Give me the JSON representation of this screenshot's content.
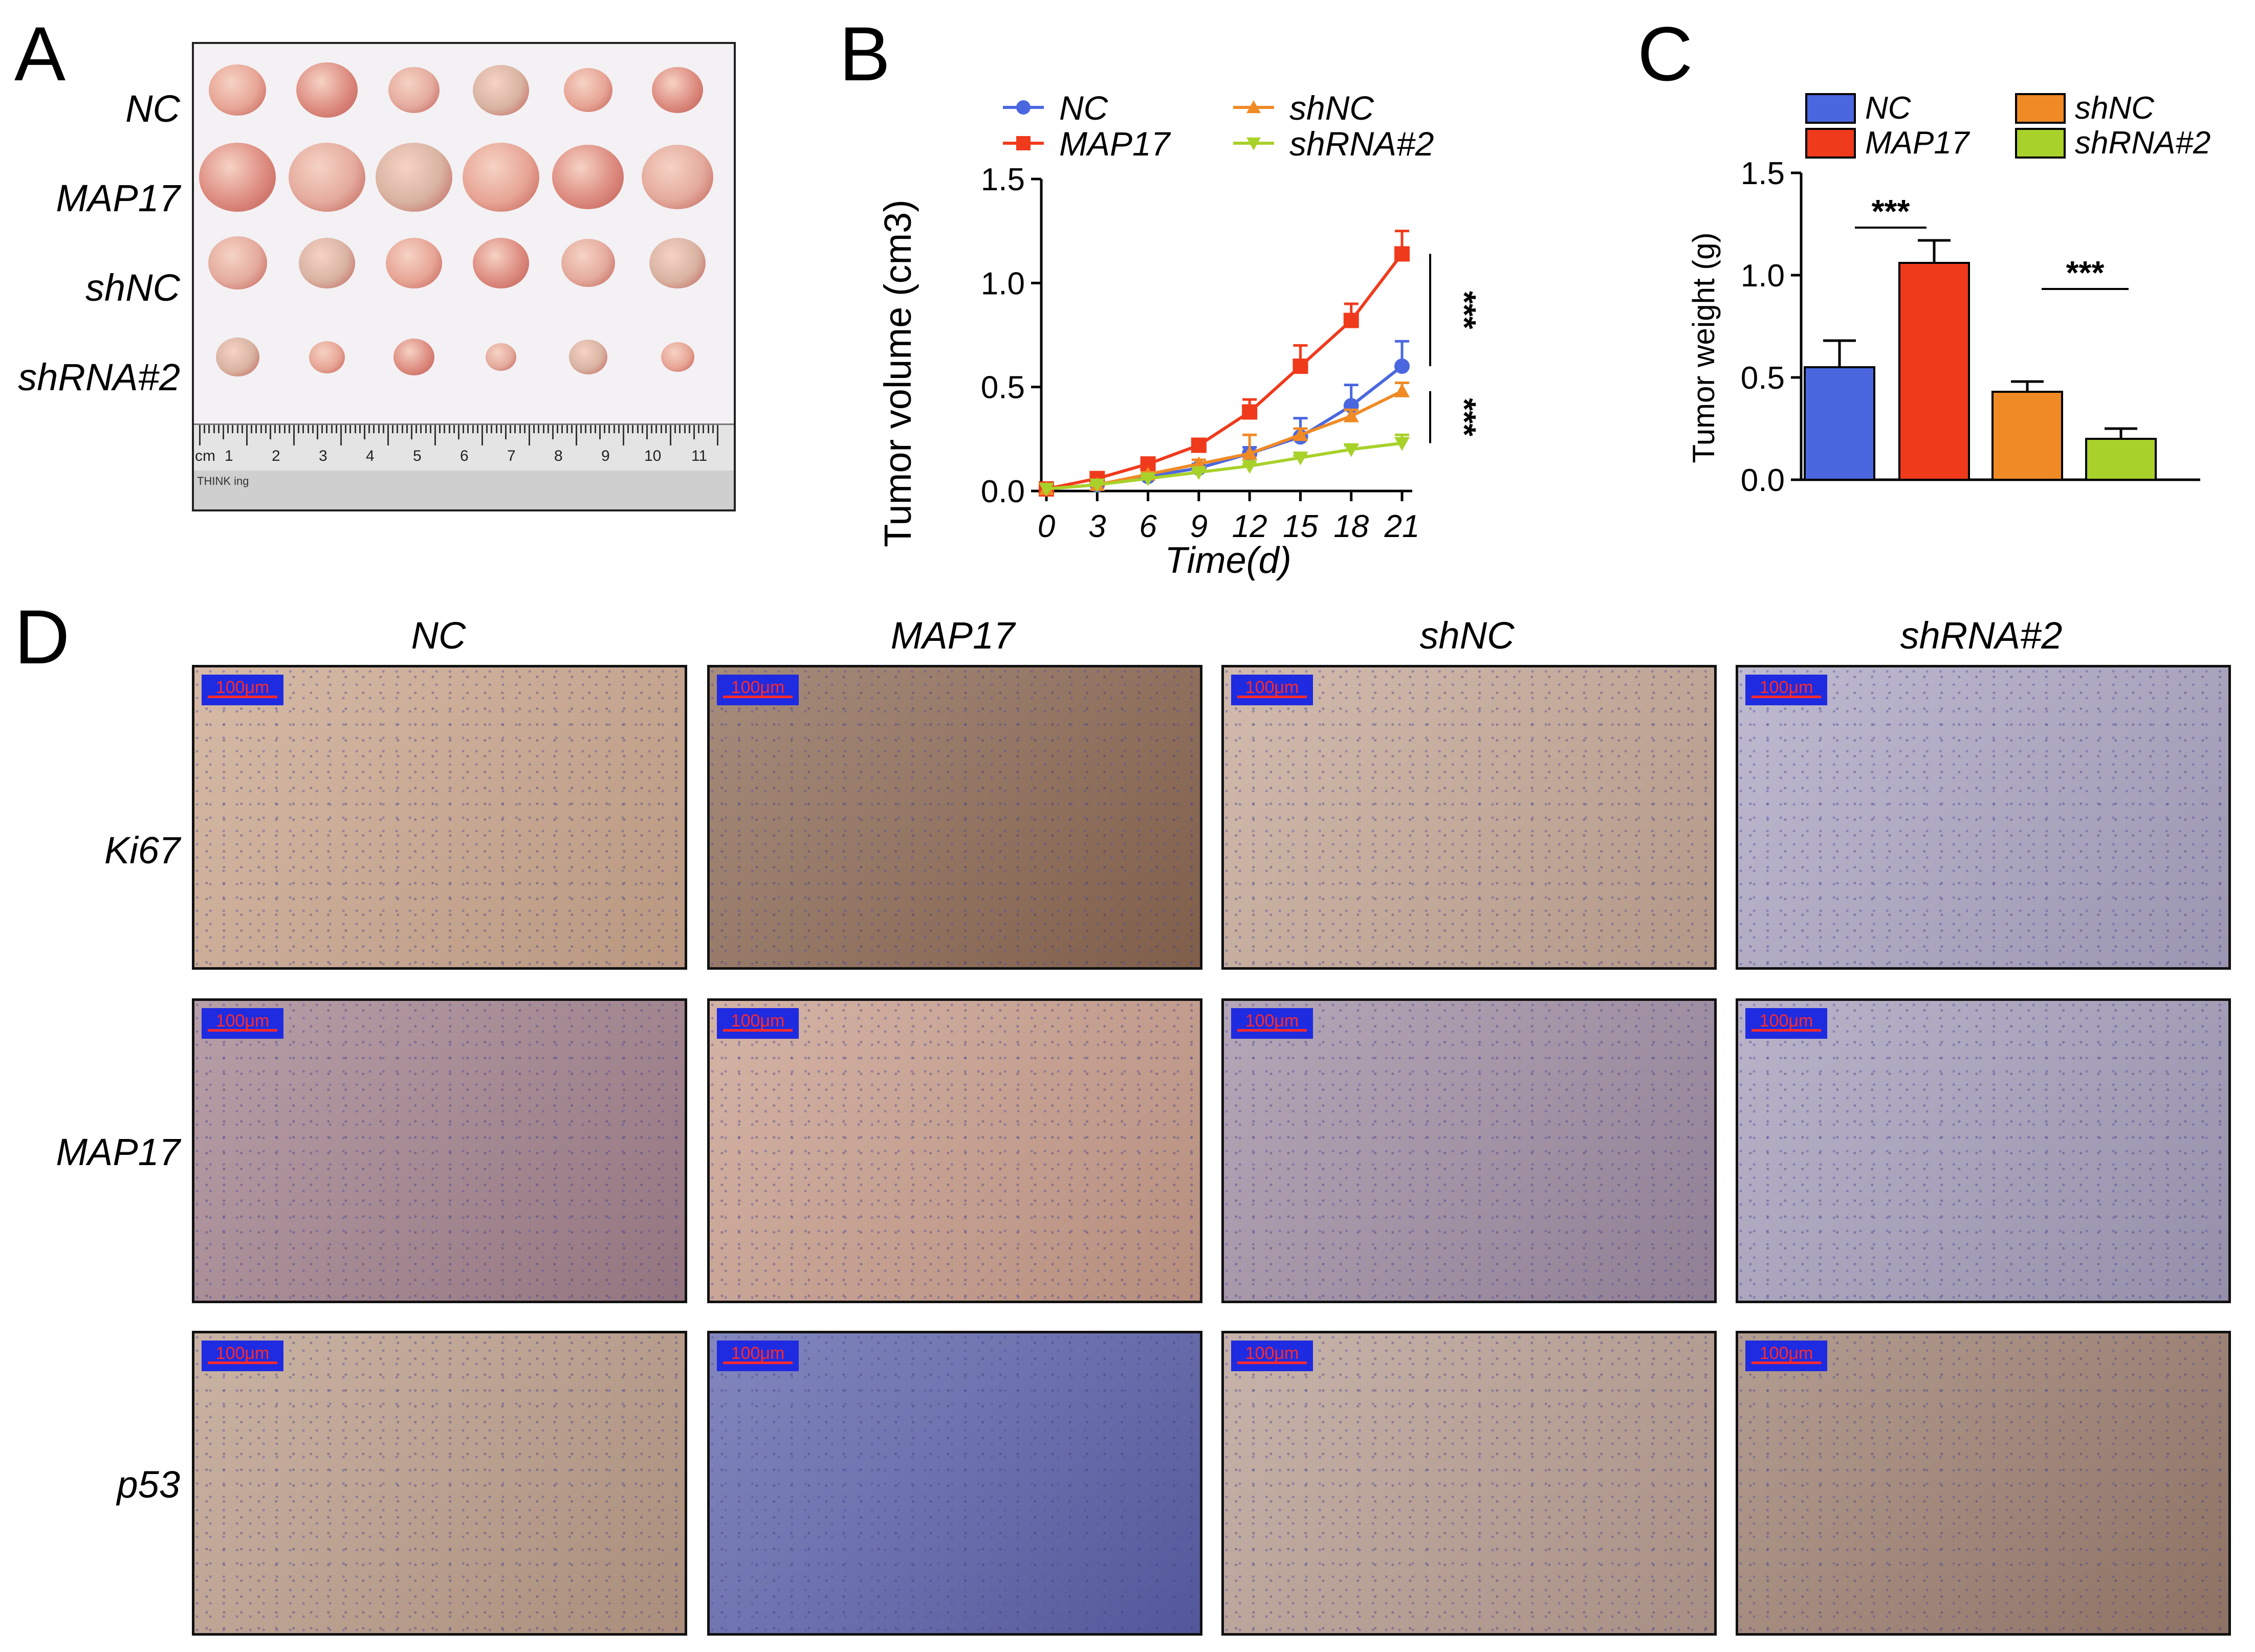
{
  "panels": {
    "A": "A",
    "B": "B",
    "C": "C",
    "D": "D"
  },
  "panel_a": {
    "groups": [
      "NC",
      "MAP17",
      "shNC",
      "shRNA#2"
    ],
    "ruler_numbers": [
      "cm",
      "1",
      "2",
      "3",
      "4",
      "5",
      "6",
      "7",
      "8",
      "9",
      "10",
      "11"
    ],
    "ruler_brand": "THINK ing"
  },
  "panel_d": {
    "columns": [
      "NC",
      "MAP17",
      "shNC",
      "shRNA#2"
    ],
    "rows": [
      "Ki67",
      "MAP17",
      "p53"
    ],
    "scale_bar": "100μm",
    "tissue_tones": [
      [
        "#c9a48a",
        "#8a6650",
        "#c3a593",
        "#a9a3c0"
      ],
      [
        "#a07f8a",
        "#c69a88",
        "#9d8aa0",
        "#a29bb8"
      ],
      [
        "#b99a86",
        "#5a5fa8",
        "#b69b8f",
        "#9a7c6c"
      ]
    ]
  },
  "colors": {
    "NC": "#4a67e0",
    "MAP17": "#f03a1c",
    "shNC": "#f08a25",
    "shRNA#2": "#a8d12a"
  },
  "chart_data": [
    {
      "type": "line",
      "ylabel": "Tumor volume (cm3)",
      "xlabel": "Time(d)",
      "x": [
        0,
        3,
        6,
        9,
        12,
        15,
        18,
        21
      ],
      "ylim": [
        0,
        1.5
      ],
      "yticks": [
        "0.0",
        "0.5",
        "1.0",
        "1.5"
      ],
      "legend_position": "top",
      "series": [
        {
          "name": "NC",
          "marker": "circle",
          "values": [
            0.01,
            0.03,
            0.07,
            0.11,
            0.18,
            0.26,
            0.41,
            0.6
          ],
          "errors": [
            0,
            0.01,
            0.01,
            0.02,
            0.03,
            0.09,
            0.1,
            0.12
          ]
        },
        {
          "name": "MAP17",
          "marker": "square",
          "values": [
            0.01,
            0.06,
            0.13,
            0.22,
            0.38,
            0.6,
            0.82,
            1.14
          ],
          "errors": [
            0,
            0.01,
            0.02,
            0.03,
            0.06,
            0.1,
            0.08,
            0.11
          ]
        },
        {
          "name": "shNC",
          "marker": "triangle-up",
          "values": [
            0.01,
            0.03,
            0.08,
            0.13,
            0.18,
            0.27,
            0.36,
            0.48
          ],
          "errors": [
            0,
            0.01,
            0.01,
            0.02,
            0.09,
            0.03,
            0.03,
            0.04
          ]
        },
        {
          "name": "shRNA#2",
          "marker": "triangle-down",
          "values": [
            0.01,
            0.03,
            0.06,
            0.09,
            0.12,
            0.16,
            0.2,
            0.23
          ],
          "errors": [
            0,
            0.01,
            0.01,
            0.01,
            0.01,
            0.01,
            0.02,
            0.04
          ]
        }
      ],
      "annotations": [
        "***",
        "***"
      ]
    },
    {
      "type": "bar",
      "ylabel": "Tumor weight (g)",
      "categories": [
        "NC",
        "MAP17",
        "shNC",
        "shRNA#2"
      ],
      "values": [
        0.55,
        1.06,
        0.43,
        0.2
      ],
      "errors": [
        0.13,
        0.11,
        0.05,
        0.05
      ],
      "ylim": [
        0,
        1.5
      ],
      "yticks": [
        "0.0",
        "0.5",
        "1.0",
        "1.5"
      ],
      "legend_position": "top",
      "annotations": [
        "***",
        "***"
      ]
    }
  ]
}
